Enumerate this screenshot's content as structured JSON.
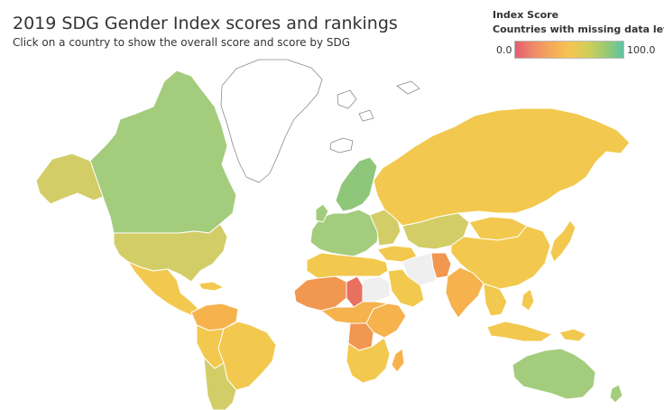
{
  "title": "2019 SDG Gender Index scores and rankings",
  "subtitle": "Click on a country to show the overall score and score by SDG",
  "legend": {
    "title": "Index Score",
    "subtitle": "Countries with missing data left ...",
    "min_label": "0.0",
    "max_label": "100.0",
    "scale_colors": [
      "#e35d6e",
      "#ef8a6b",
      "#f4a95a",
      "#f6c552",
      "#d4cd5a",
      "#9cca70",
      "#5ec4a3"
    ]
  },
  "colors": {
    "high": "#a3cc7d",
    "upper_mid": "#d3cd68",
    "mid": "#f2c94e",
    "lower_mid": "#f6b24d",
    "low": "#f19750",
    "lowest": "#e8705f",
    "no_data": "#efefef",
    "ocean": "#ffffff"
  }
}
